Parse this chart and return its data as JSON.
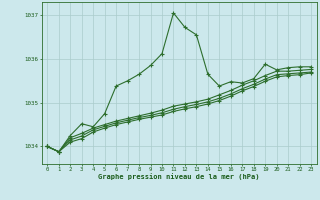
{
  "background_color": "#cce8ec",
  "grid_color": "#aacccc",
  "line_color": "#2d6e2d",
  "xlabel": "Graphe pression niveau de la mer (hPa)",
  "xlabel_color": "#1a5c1a",
  "tick_label_color": "#1a5c1a",
  "spine_color": "#2d6e2d",
  "yticks": [
    1034,
    1035,
    1036,
    1037
  ],
  "xlim": [
    -0.5,
    23.5
  ],
  "ylim": [
    1033.6,
    1037.3
  ],
  "series": [
    [
      1034.0,
      1033.88,
      1034.25,
      1034.52,
      1034.45,
      1034.75,
      1035.38,
      1035.5,
      1035.65,
      1035.85,
      1036.12,
      1037.05,
      1036.72,
      1036.55,
      1035.65,
      1035.38,
      1035.48,
      1035.45,
      1035.55,
      1035.88,
      1035.75,
      1035.8,
      1035.82,
      1035.82
    ],
    [
      1034.0,
      1033.88,
      1034.2,
      1034.3,
      1034.42,
      1034.5,
      1034.58,
      1034.64,
      1034.7,
      1034.76,
      1034.83,
      1034.92,
      1034.97,
      1035.02,
      1035.08,
      1035.18,
      1035.28,
      1035.4,
      1035.5,
      1035.62,
      1035.72,
      1035.72,
      1035.74,
      1035.76
    ],
    [
      1034.0,
      1033.88,
      1034.15,
      1034.24,
      1034.38,
      1034.46,
      1034.54,
      1034.6,
      1034.66,
      1034.71,
      1034.77,
      1034.85,
      1034.91,
      1034.96,
      1035.02,
      1035.1,
      1035.2,
      1035.32,
      1035.42,
      1035.54,
      1035.64,
      1035.66,
      1035.68,
      1035.7
    ],
    [
      1034.0,
      1033.88,
      1034.1,
      1034.18,
      1034.33,
      1034.42,
      1034.5,
      1034.56,
      1034.62,
      1034.67,
      1034.72,
      1034.8,
      1034.86,
      1034.91,
      1034.97,
      1035.05,
      1035.15,
      1035.27,
      1035.37,
      1035.49,
      1035.59,
      1035.62,
      1035.64,
      1035.68
    ]
  ]
}
